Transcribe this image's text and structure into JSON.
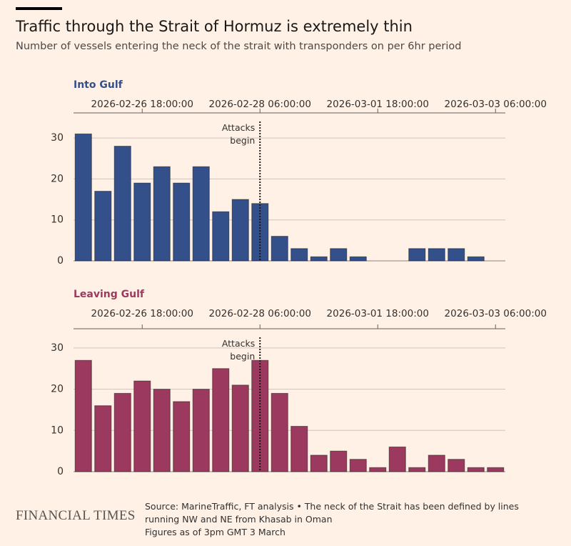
{
  "header": {
    "title": "Traffic through the Strait of Hormuz is extremely thin",
    "subtitle": "Number of vessels entering the neck of the strait with transponders on per 6hr period"
  },
  "chart_data": [
    {
      "type": "bar",
      "title": "Into Gulf",
      "color": "#34508a",
      "x": [
        "2026-02-26 00:00:00",
        "2026-02-26 06:00:00",
        "2026-02-26 12:00:00",
        "2026-02-26 18:00:00",
        "2026-02-27 00:00:00",
        "2026-02-27 06:00:00",
        "2026-02-27 12:00:00",
        "2026-02-27 18:00:00",
        "2026-02-28 00:00:00",
        "2026-02-28 06:00:00",
        "2026-02-28 12:00:00",
        "2026-02-28 18:00:00",
        "2026-03-01 00:00:00",
        "2026-03-01 06:00:00",
        "2026-03-01 12:00:00",
        "2026-03-01 18:00:00",
        "2026-03-02 00:00:00",
        "2026-03-02 06:00:00",
        "2026-03-02 12:00:00",
        "2026-03-02 18:00:00",
        "2026-03-03 00:00:00",
        "2026-03-03 06:00:00"
      ],
      "values": [
        31,
        17,
        28,
        19,
        23,
        19,
        23,
        12,
        15,
        14,
        6,
        3,
        1,
        3,
        1,
        0,
        0,
        3,
        3,
        3,
        1,
        0
      ],
      "xticks": [
        "2026-02-26 18:00:00",
        "2026-02-28 06:00:00",
        "2026-03-01 18:00:00",
        "2026-03-03 06:00:00"
      ],
      "ylim": [
        0,
        32
      ],
      "yticks": [
        0,
        10,
        20,
        30
      ],
      "grid": true,
      "annotation": {
        "x": "2026-02-28 06:00:00",
        "text": "Attacks begin"
      }
    },
    {
      "type": "bar",
      "title": "Leaving Gulf",
      "color": "#9b3a5e",
      "x": [
        "2026-02-26 00:00:00",
        "2026-02-26 06:00:00",
        "2026-02-26 12:00:00",
        "2026-02-26 18:00:00",
        "2026-02-27 00:00:00",
        "2026-02-27 06:00:00",
        "2026-02-27 12:00:00",
        "2026-02-27 18:00:00",
        "2026-02-28 00:00:00",
        "2026-02-28 06:00:00",
        "2026-02-28 12:00:00",
        "2026-02-28 18:00:00",
        "2026-03-01 00:00:00",
        "2026-03-01 06:00:00",
        "2026-03-01 12:00:00",
        "2026-03-01 18:00:00",
        "2026-03-02 00:00:00",
        "2026-03-02 06:00:00",
        "2026-03-02 12:00:00",
        "2026-03-02 18:00:00",
        "2026-03-03 00:00:00",
        "2026-03-03 06:00:00"
      ],
      "values": [
        27,
        16,
        19,
        22,
        20,
        17,
        20,
        25,
        21,
        27,
        19,
        11,
        4,
        5,
        3,
        1,
        6,
        1,
        4,
        3,
        1,
        1
      ],
      "xticks": [
        "2026-02-26 18:00:00",
        "2026-02-28 06:00:00",
        "2026-03-01 18:00:00",
        "2026-03-03 06:00:00"
      ],
      "ylim": [
        0,
        32
      ],
      "yticks": [
        0,
        10,
        20,
        30
      ],
      "grid": true,
      "annotation": {
        "x": "2026-02-28 06:00:00",
        "text": "Attacks begin"
      }
    }
  ],
  "footer": {
    "logo": "FINANCIAL TIMES",
    "source": "Source: MarineTraffic, FT analysis • The neck of the Strait has been defined by lines running NW and NE from Khasab in Oman",
    "as_of": "Figures as of 3pm GMT 3 March"
  }
}
